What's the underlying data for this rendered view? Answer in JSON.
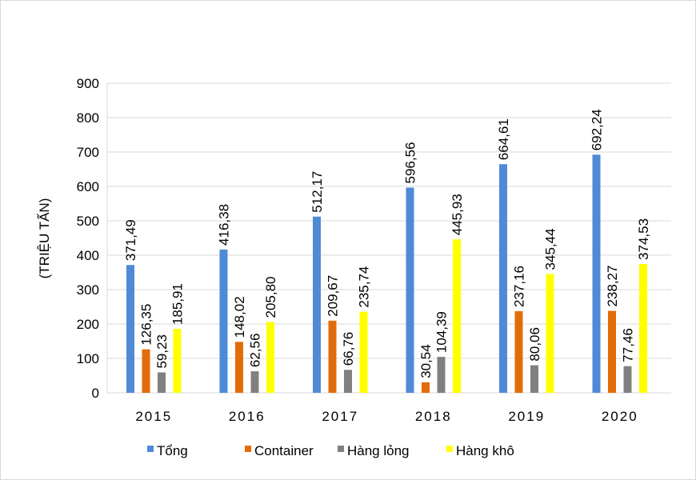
{
  "chart_data": {
    "type": "bar",
    "title": "",
    "xlabel": "",
    "ylabel": "(TRIỆU TẤN)",
    "ylim": [
      0,
      900
    ],
    "yticks": [
      0,
      100,
      200,
      300,
      400,
      500,
      600,
      700,
      800,
      900
    ],
    "grid": true,
    "legend_position": "bottom",
    "categories": [
      "2015",
      "2016",
      "2017",
      "2018",
      "2019",
      "2020"
    ],
    "series": [
      {
        "name": "Tổng",
        "color": "#4f8ad6",
        "values": [
          371.49,
          416.38,
          512.17,
          596.56,
          664.61,
          692.24
        ],
        "labels": [
          "371,49",
          "416,38",
          "512,17",
          "596,56",
          "664,61",
          "692,24"
        ]
      },
      {
        "name": "Container",
        "color": "#e36c0a",
        "values": [
          126.35,
          148.02,
          209.67,
          30.54,
          237.16,
          238.27
        ],
        "labels": [
          "126,35",
          "148,02",
          "209,67",
          "30,54",
          "237,16",
          "238,27"
        ]
      },
      {
        "name": "Hàng lỏng",
        "color": "#808080",
        "values": [
          59.23,
          62.56,
          66.76,
          104.39,
          80.06,
          77.46
        ],
        "labels": [
          "59,23",
          "62,56",
          "66,76",
          "104,39",
          "80,06",
          "77,46"
        ]
      },
      {
        "name": "Hàng khô",
        "color": "#ffff00",
        "values": [
          185.91,
          205.8,
          235.74,
          445.93,
          345.44,
          374.53
        ],
        "labels": [
          "185,91",
          "205,80",
          "235,74",
          "445,93",
          "345,44",
          "374,53"
        ]
      }
    ]
  }
}
